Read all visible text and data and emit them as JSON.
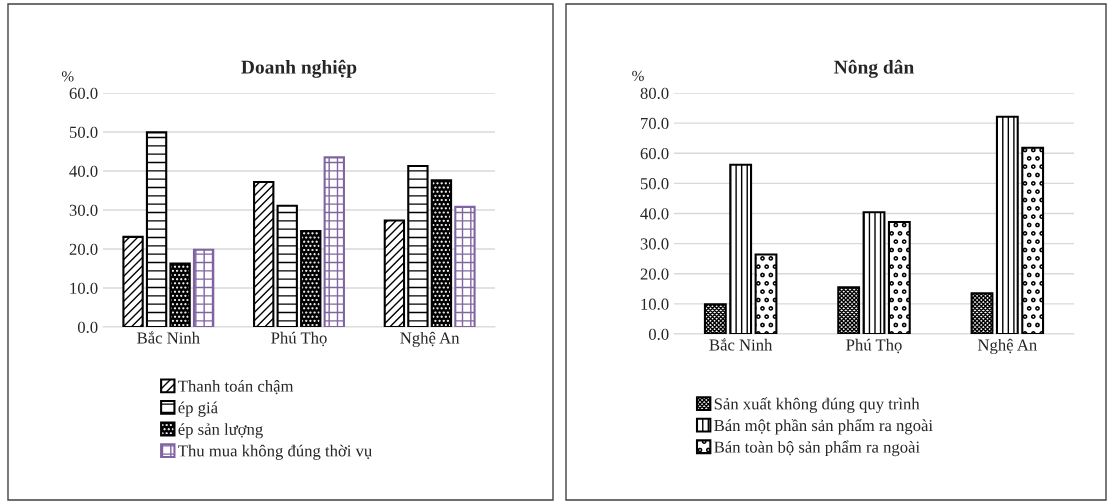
{
  "chart_data": [
    {
      "type": "bar",
      "title": "Doanh nghiệp",
      "ylabel": "%",
      "categories": [
        "Bắc Ninh",
        "Phú Thọ",
        "Nghệ An"
      ],
      "ylim": [
        0,
        60
      ],
      "yticks": [
        {
          "value": 0,
          "label": "0.0"
        },
        {
          "value": 10,
          "label": "10.0"
        },
        {
          "value": 20,
          "label": "20.0"
        },
        {
          "value": 30,
          "label": "30.0"
        },
        {
          "value": 40,
          "label": "40.0"
        },
        {
          "value": 50,
          "label": "50.0"
        },
        {
          "value": 60,
          "label": "60.0"
        }
      ],
      "grid": "y",
      "legend": "bottom",
      "series": [
        {
          "name": "Thanh toán chậm",
          "color": "#000000",
          "values": [
            23.1,
            37.2,
            27.3
          ]
        },
        {
          "name": "ép giá",
          "color": "#000000",
          "values": [
            49.9,
            31.1,
            41.3
          ]
        },
        {
          "name": "ép sản lượng",
          "color": "#000000",
          "values": [
            16.3,
            24.6,
            37.6
          ]
        },
        {
          "name": "Thu mua không đúng thời vụ",
          "color": "#8064a2",
          "values": [
            19.8,
            43.5,
            30.8
          ]
        }
      ]
    },
    {
      "type": "bar",
      "title": "Nông dân",
      "ylabel": "%",
      "categories": [
        "Bắc Ninh",
        "Phú Thọ",
        "Nghệ An"
      ],
      "ylim": [
        0,
        80
      ],
      "yticks": [
        {
          "value": 0,
          "label": "0.0"
        },
        {
          "value": 10,
          "label": "10.0"
        },
        {
          "value": 20,
          "label": "20.0"
        },
        {
          "value": 30,
          "label": "30.0"
        },
        {
          "value": 40,
          "label": "40.0"
        },
        {
          "value": 50,
          "label": "50.0"
        },
        {
          "value": 60,
          "label": "60.0"
        },
        {
          "value": 70,
          "label": "70.0"
        },
        {
          "value": 80,
          "label": "80.0"
        }
      ],
      "grid": "y",
      "legend": "bottom",
      "series": [
        {
          "name": "Sản xuất không đúng quy trình",
          "color": "#000000",
          "values": [
            9.9,
            15.5,
            13.5
          ]
        },
        {
          "name": "Bán một phần sản phẩm ra ngoài",
          "color": "#000000",
          "values": [
            56.2,
            40.4,
            72.1
          ]
        },
        {
          "name": "Bán toàn bộ sản phẩm ra ngoài",
          "color": "#000000",
          "values": [
            26.4,
            37.2,
            61.8
          ]
        }
      ]
    }
  ]
}
